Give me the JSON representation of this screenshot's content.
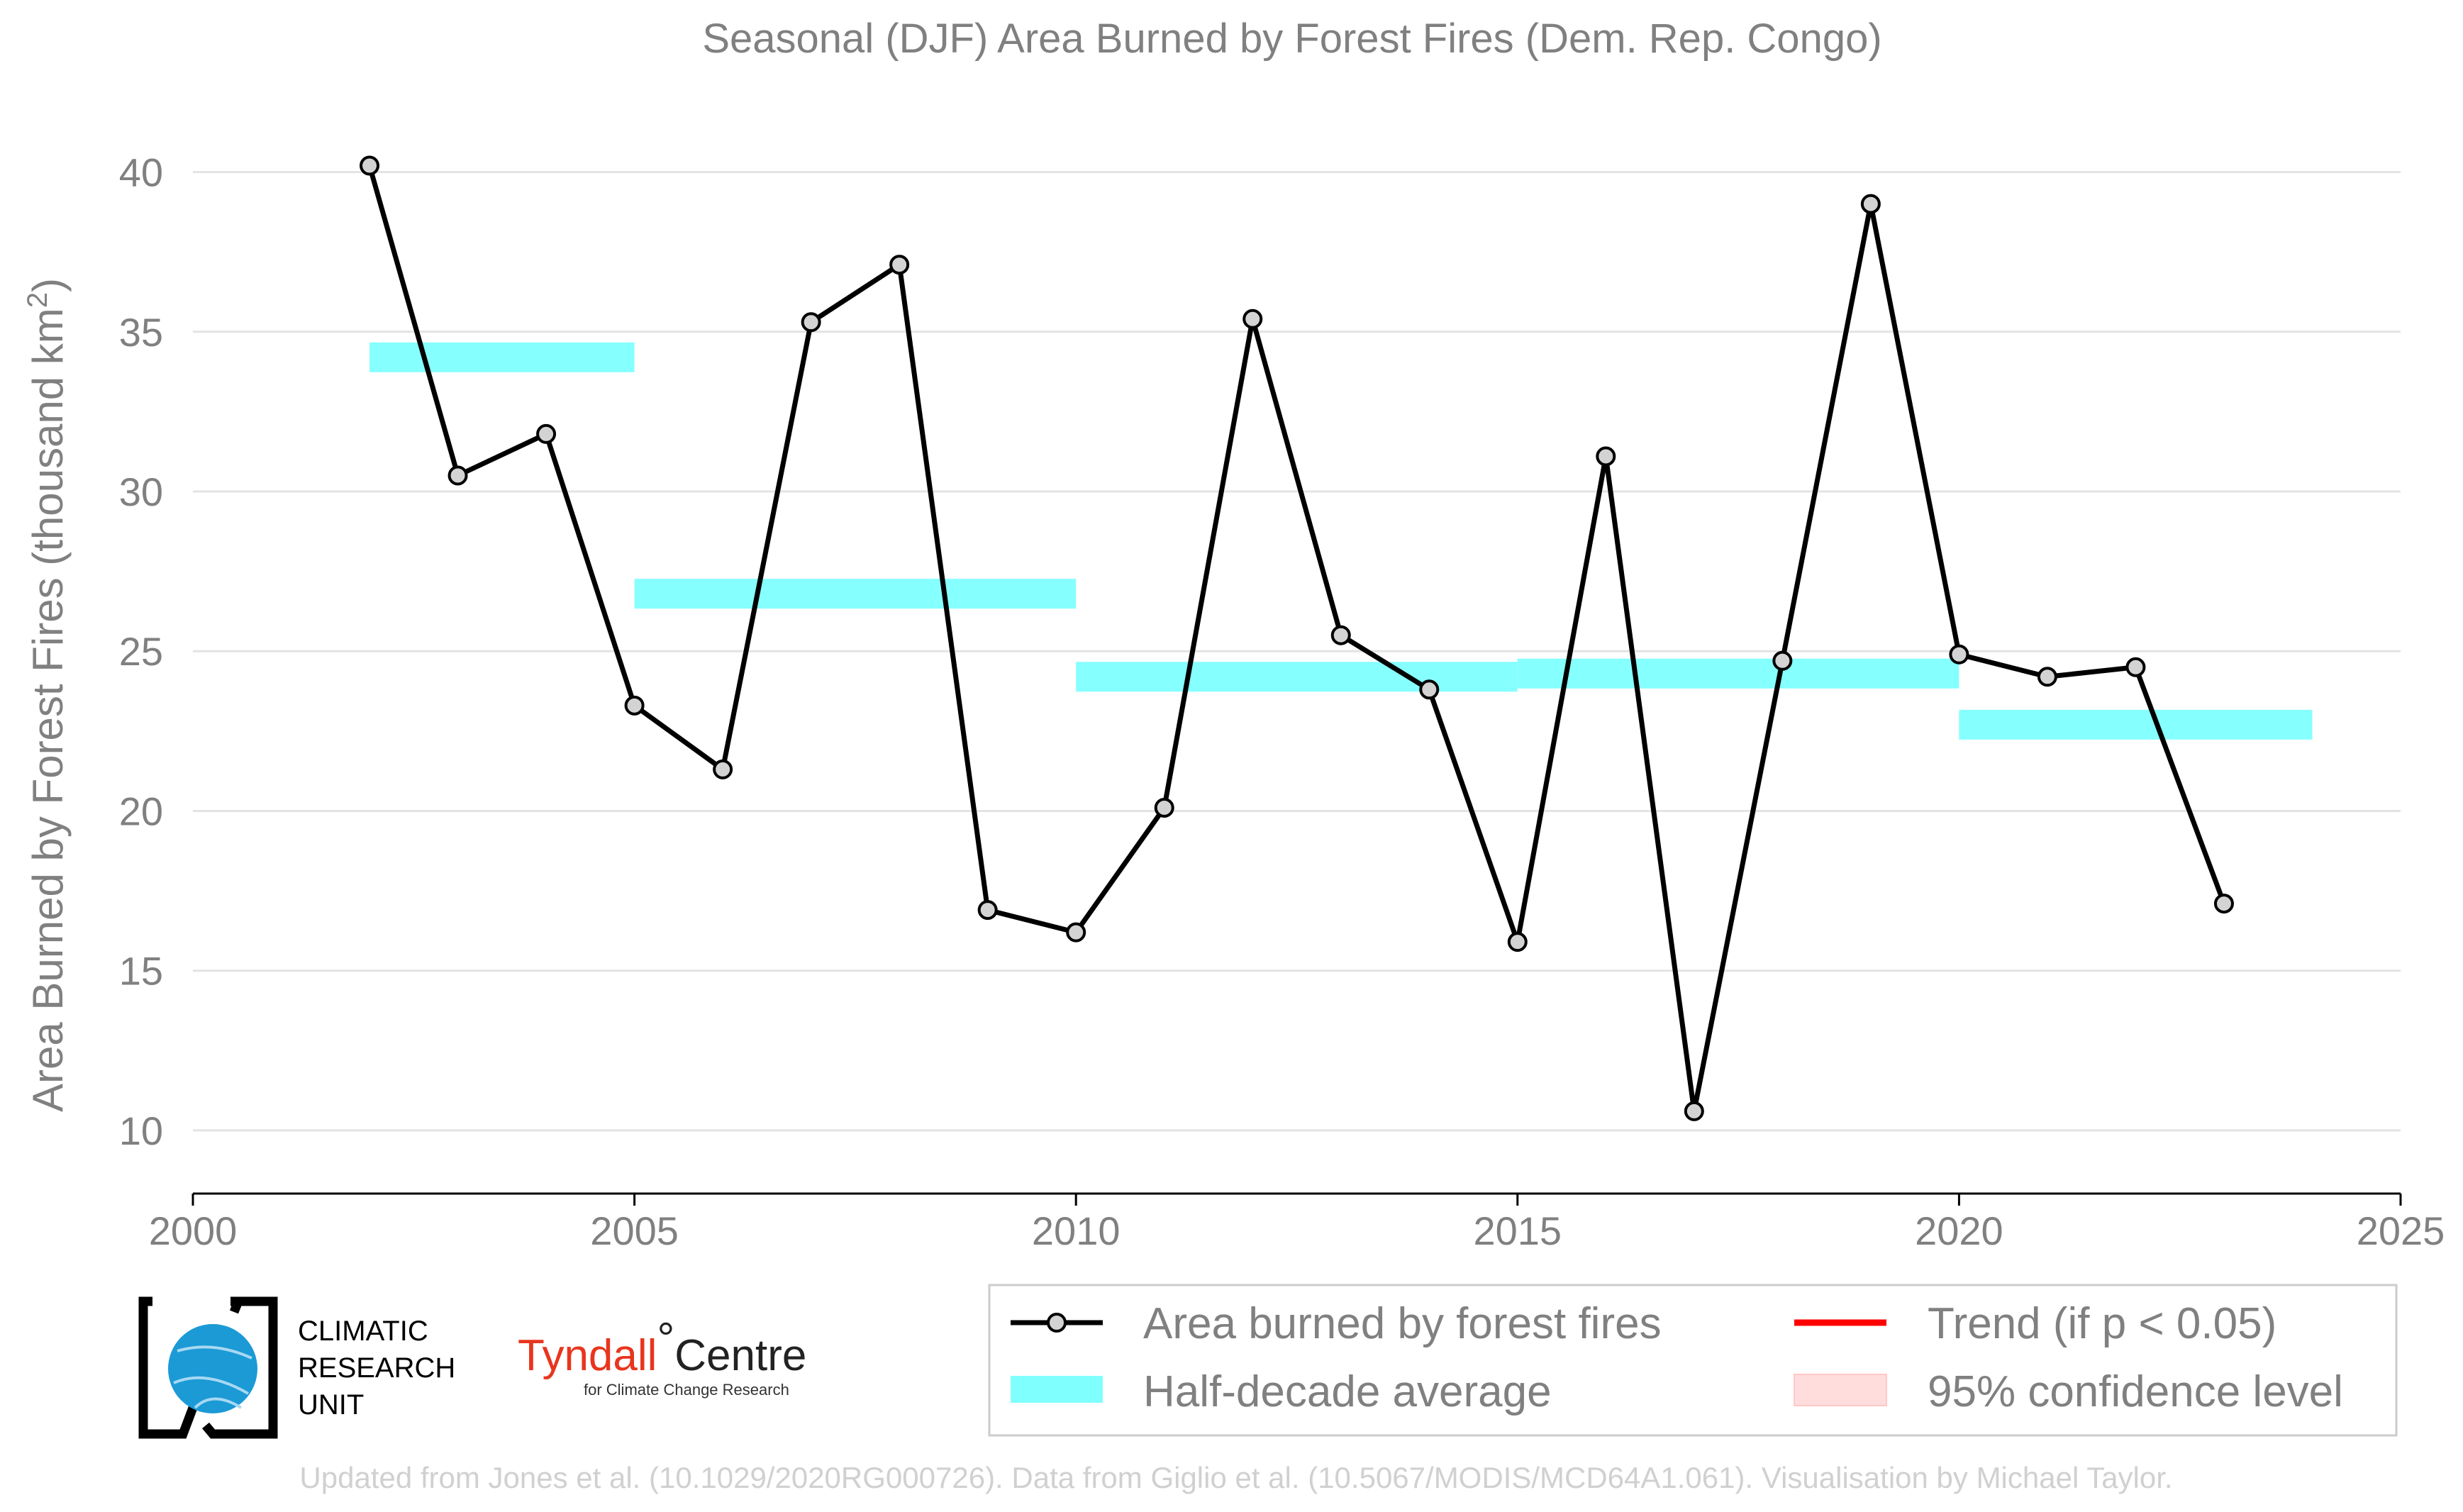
{
  "chart_data": {
    "type": "line",
    "title": "Seasonal (DJF) Area Burned by Forest Fires (Dem. Rep. Congo)",
    "ylabel_main": "Area Burned by Forest Fires (thousand km",
    "ylabel_sup": "2",
    "ylabel_close": ")",
    "xlabel": "",
    "xlim": [
      2000,
      2025
    ],
    "ylim": [
      8.2,
      41.5
    ],
    "xticks": [
      2000,
      2005,
      2010,
      2015,
      2020,
      2025
    ],
    "xtick_labels": [
      "2000",
      "2005",
      "2010",
      "2015",
      "2020",
      "2025"
    ],
    "yticks": [
      10,
      15,
      20,
      25,
      30,
      35,
      40
    ],
    "ytick_labels": [
      "10",
      "15",
      "20",
      "25",
      "30",
      "35",
      "40"
    ],
    "grid": "horizontal",
    "series": [
      {
        "name": "Area burned by forest fires",
        "color": "#000000",
        "marker_fill": "#d3d3d3",
        "x": [
          2002,
          2003,
          2004,
          2005,
          2006,
          2007,
          2008,
          2009,
          2010,
          2011,
          2012,
          2013,
          2014,
          2015,
          2016,
          2017,
          2018,
          2019,
          2020,
          2021,
          2022,
          2023
        ],
        "y": [
          40.2,
          30.5,
          31.8,
          23.3,
          21.3,
          35.3,
          37.1,
          16.9,
          16.2,
          20.1,
          35.4,
          25.5,
          23.8,
          15.9,
          31.1,
          10.6,
          24.7,
          39.0,
          24.9,
          24.2,
          24.5,
          17.1
        ]
      }
    ],
    "half_decade_average": {
      "name": "Half-decade average",
      "color": "#80ffff",
      "segments": [
        {
          "x0": 2002,
          "x1": 2005,
          "y": 34.2
        },
        {
          "x0": 2005,
          "x1": 2010,
          "y": 26.8
        },
        {
          "x0": 2010,
          "x1": 2015,
          "y": 24.2
        },
        {
          "x0": 2015,
          "x1": 2020,
          "y": 24.3
        },
        {
          "x0": 2020,
          "x1": 2024,
          "y": 22.7
        }
      ]
    },
    "legend": {
      "placement": "bottom-right",
      "entries": [
        {
          "label": "Area burned by forest fires",
          "kind": "line-marker",
          "color": "#000000"
        },
        {
          "label": "Half-decade average",
          "kind": "band",
          "color": "#80ffff"
        },
        {
          "label": "Trend (if p < 0.05)",
          "kind": "line",
          "color": "#ff0000"
        },
        {
          "label": "95% confidence level",
          "kind": "patch",
          "color": "#ffdddd"
        }
      ]
    }
  },
  "logos": {
    "cru": {
      "line1": "CLIMATIC",
      "line2": "RESEARCH",
      "line3": "UNIT"
    },
    "tyndall": {
      "part1": "Tyndall",
      "degree": "°",
      "part2": "Centre",
      "sub": "for Climate Change Research"
    }
  },
  "footer": "Updated from Jones et al. (10.1029/2020RG000726). Data from Giglio et al. (10.5067/MODIS/MCD64A1.061). Visualisation by Michael Taylor."
}
